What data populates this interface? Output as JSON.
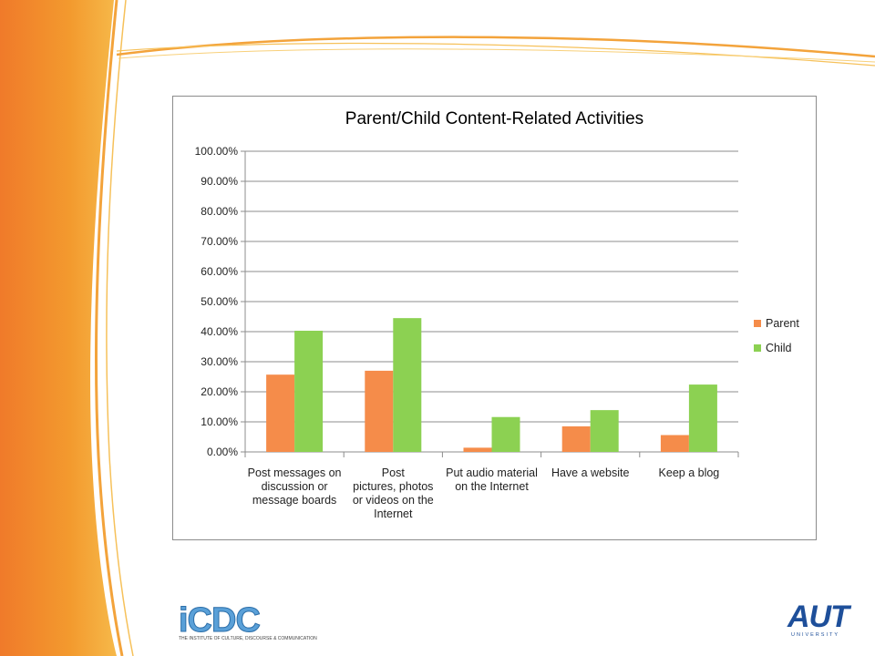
{
  "colors": {
    "parent": "#f58c4a",
    "child": "#8cd152",
    "accent_orange": "#f39a2e",
    "gridline": "#8c8c8c"
  },
  "logos": {
    "icdc_text": "iCDC",
    "icdc_subtitle": "THE INSTITUTE OF CULTURE, DISCOURSE & COMMUNICATION",
    "aut_text": "AUT",
    "aut_subtitle": "UNIVERSITY"
  },
  "chart_data": {
    "type": "bar",
    "title": "Parent/Child Content-Related Activities",
    "xlabel": "",
    "ylabel": "",
    "ylim": [
      0,
      100
    ],
    "y_ticks": [
      "0.00%",
      "10.00%",
      "20.00%",
      "30.00%",
      "40.00%",
      "50.00%",
      "60.00%",
      "70.00%",
      "80.00%",
      "90.00%",
      "100.00%"
    ],
    "categories": [
      [
        "Post messages on",
        "discussion or",
        "message boards"
      ],
      [
        "Post",
        "pictures, photos",
        "or videos on the",
        "Internet"
      ],
      [
        "Put audio material",
        "on the Internet"
      ],
      [
        "Have a website"
      ],
      [
        "Keep a blog"
      ]
    ],
    "series": [
      {
        "name": "Parent",
        "values": [
          25.7,
          27.0,
          1.4,
          8.5,
          5.6
        ]
      },
      {
        "name": "Child",
        "values": [
          40.3,
          44.5,
          11.6,
          13.9,
          22.4
        ]
      }
    ],
    "grid": true,
    "legend_position": "right"
  }
}
